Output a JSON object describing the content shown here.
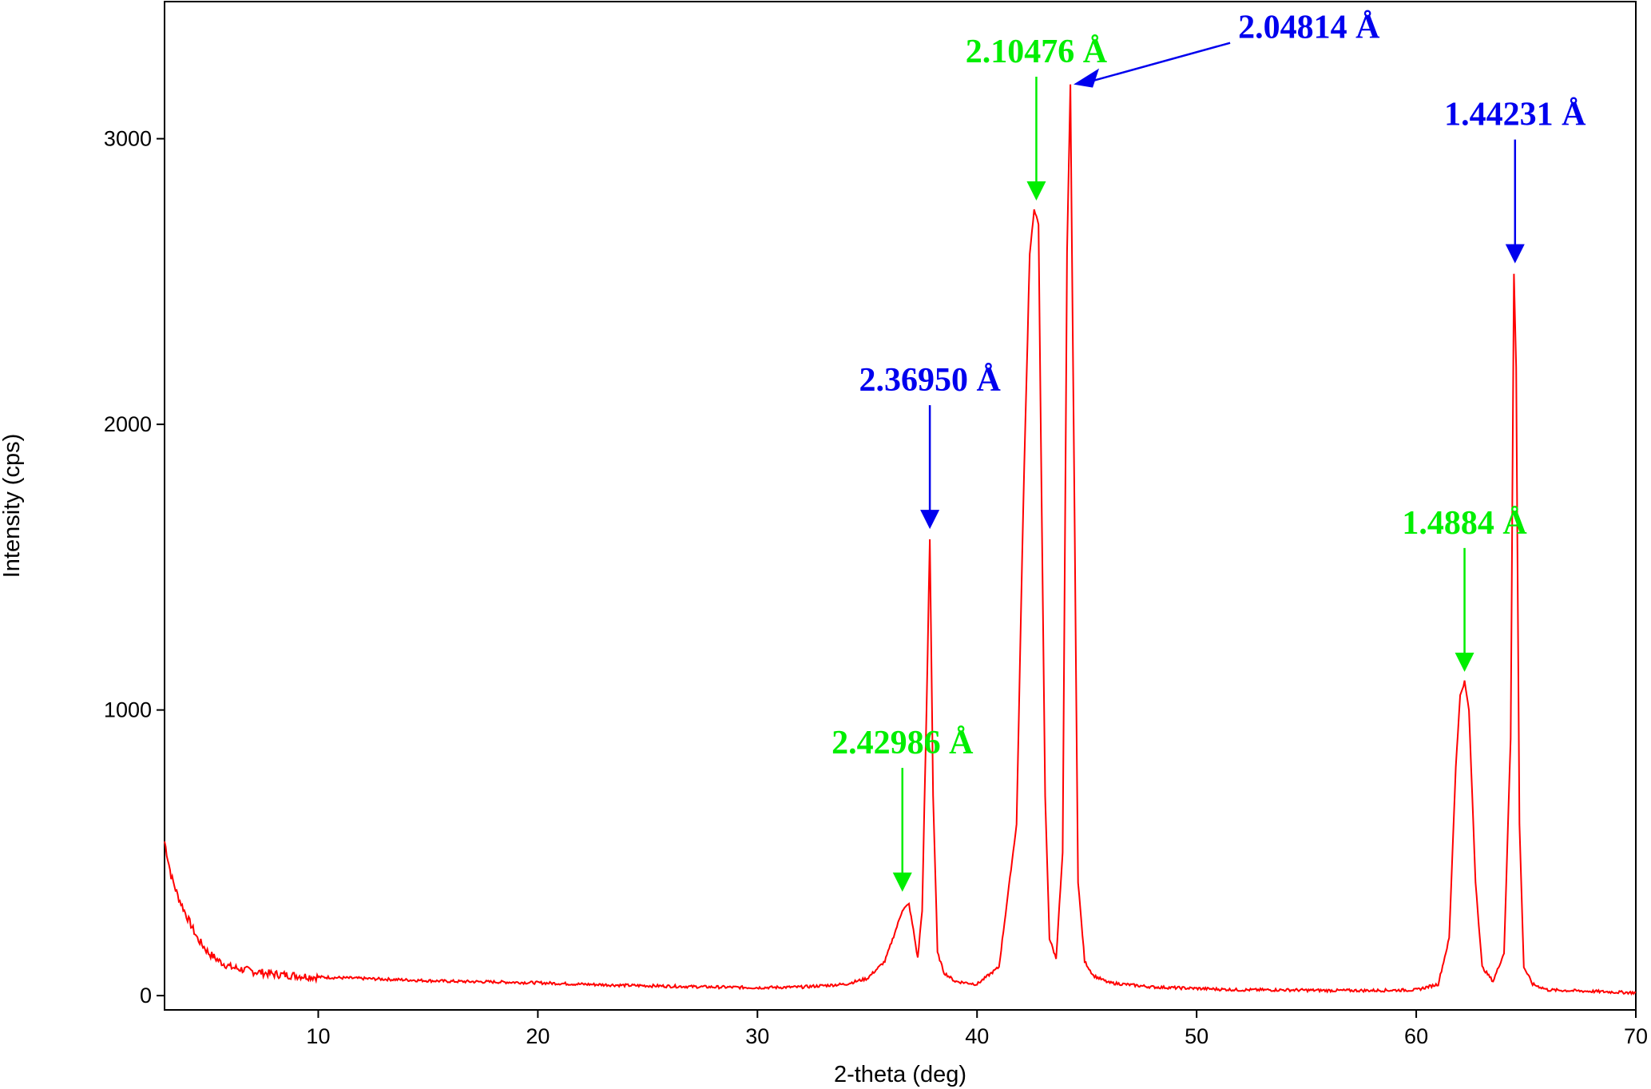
{
  "chart_data": {
    "type": "line",
    "title": "",
    "xlabel": "2-theta (deg)",
    "ylabel": "Intensity (cps)",
    "xlim": [
      3,
      70
    ],
    "ylim": [
      -50,
      3480
    ],
    "x_ticks": [
      10,
      20,
      30,
      40,
      50,
      60,
      70
    ],
    "y_ticks": [
      0,
      1000,
      2000,
      3000
    ],
    "grid": false,
    "legend": "none",
    "series": [
      {
        "color": "#ff0000",
        "x": [
          3.0,
          3.3,
          3.6,
          4.0,
          4.5,
          5.0,
          5.5,
          6.0,
          7.0,
          8.0,
          9.0,
          10.0,
          12.0,
          14.0,
          16.0,
          18.0,
          20.0,
          22.0,
          24.0,
          26.0,
          28.0,
          30.0,
          32.0,
          34.0,
          35.0,
          35.8,
          36.3,
          36.6,
          36.9,
          37.1,
          37.3,
          37.5,
          37.7,
          37.85,
          38.0,
          38.2,
          38.5,
          39.0,
          40.0,
          41.0,
          41.8,
          42.1,
          42.4,
          42.6,
          42.8,
          42.9,
          43.1,
          43.3,
          43.6,
          43.9,
          44.1,
          44.25,
          44.4,
          44.6,
          44.9,
          45.3,
          46.0,
          48.0,
          50.0,
          52.0,
          54.0,
          56.0,
          58.0,
          60.0,
          61.0,
          61.5,
          61.8,
          62.0,
          62.2,
          62.4,
          62.7,
          63.0,
          63.5,
          64.0,
          64.3,
          64.45,
          64.55,
          64.7,
          64.9,
          65.3,
          66.0,
          68.0,
          70.0
        ],
        "y": [
          540,
          420,
          350,
          280,
          200,
          150,
          120,
          100,
          85,
          75,
          70,
          65,
          60,
          55,
          50,
          48,
          45,
          40,
          36,
          33,
          30,
          28,
          30,
          40,
          60,
          120,
          230,
          300,
          320,
          230,
          130,
          300,
          1000,
          1600,
          700,
          150,
          80,
          50,
          40,
          100,
          600,
          1700,
          2600,
          2750,
          2700,
          2000,
          700,
          200,
          130,
          500,
          2600,
          3190,
          2000,
          400,
          120,
          70,
          45,
          30,
          25,
          20,
          20,
          18,
          18,
          20,
          40,
          200,
          800,
          1050,
          1100,
          1000,
          400,
          100,
          50,
          150,
          900,
          2530,
          2200,
          600,
          100,
          40,
          20,
          15,
          10
        ]
      }
    ],
    "annotations": [
      {
        "text": "2.42986 Å",
        "x": 36.6,
        "y": 330,
        "color": "#00ee00"
      },
      {
        "text": "2.36950 Å",
        "x": 37.85,
        "y": 1600,
        "color": "#0000ee"
      },
      {
        "text": "2.10476 Å",
        "x": 42.7,
        "y": 2750,
        "color": "#00ee00"
      },
      {
        "text": "2.04814 Å",
        "x": 44.25,
        "y": 3190,
        "color": "#0000ee"
      },
      {
        "text": "1.4884 Å",
        "x": 62.2,
        "y": 1100,
        "color": "#00ee00"
      },
      {
        "text": "1.44231 Å",
        "x": 64.5,
        "y": 2530,
        "color": "#0000ee"
      }
    ]
  }
}
